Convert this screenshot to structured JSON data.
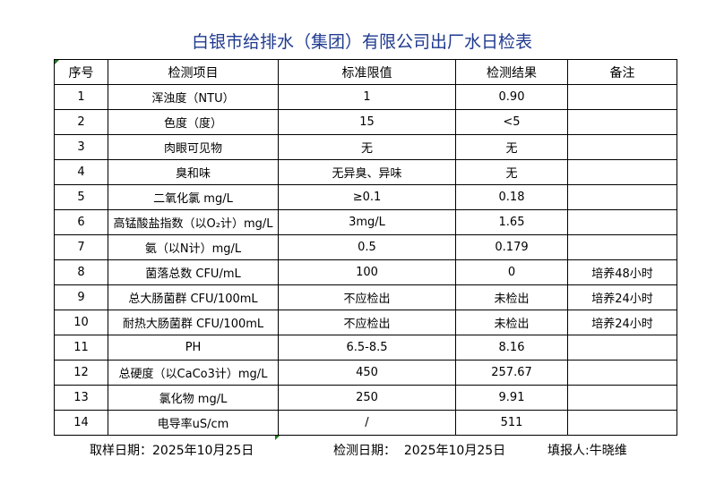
{
  "title": "白银市给排水（集团）有限公司出厂水日检表",
  "headers": [
    "序号",
    "检测项目",
    "标准限值",
    "检测结果",
    "备注"
  ],
  "rows": [
    [
      "1",
      "浑浊度（NTU）",
      "1",
      "0.90",
      ""
    ],
    [
      "2",
      "色度（度）",
      "15",
      "<5",
      ""
    ],
    [
      "3",
      "肉眼可见物",
      "无",
      "无",
      ""
    ],
    [
      "4",
      "臭和味",
      "无异臭、异味",
      "无",
      ""
    ],
    [
      "5",
      "二氧化氯 mg/L",
      "≥0.1",
      "0.18",
      ""
    ],
    [
      "6",
      "高锰酸盐指数（以O₂计）mg/L",
      "3mg/L",
      "1.65",
      ""
    ],
    [
      "7",
      "氨（以N计）mg/L",
      "0.5",
      "0.179",
      ""
    ],
    [
      "8",
      "菌落总数 CFU/mL",
      "100",
      "0",
      "培养48小时"
    ],
    [
      "9",
      "总大肠菌群 CFU/100mL",
      "不应检出",
      "未检出",
      "培养24小时"
    ],
    [
      "10",
      "耐热大肠菌群 CFU/100mL",
      "不应检出",
      "未检出",
      "培养24小时"
    ],
    [
      "11",
      "PH",
      "6.5-8.5",
      "8.16",
      ""
    ],
    [
      "12",
      "总硬度（以CaCo3计）mg/L",
      "450",
      "257.67",
      ""
    ],
    [
      "13",
      "氯化物 mg/L",
      "250",
      "9.91",
      ""
    ],
    [
      "14",
      "电导率uS/cm",
      "/",
      "511",
      ""
    ]
  ],
  "footer": {
    "sampling": "取样日期：2025年10月25日",
    "testing": "检测日期：  2025年10月25日",
    "reporter": "填报人:牛晓维"
  },
  "colors": {
    "title": "#1f3a8f",
    "cell_marker": "#1a7a1a"
  }
}
